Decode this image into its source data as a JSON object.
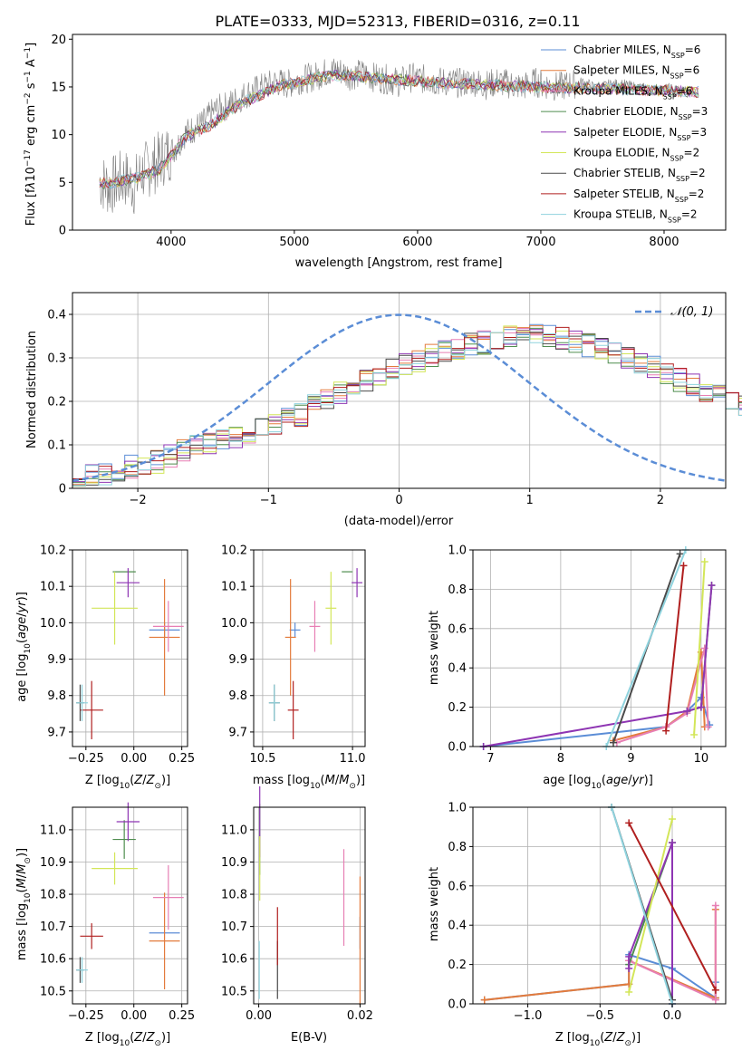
{
  "figure_title": "PLATE=0333, MJD=52313, FIBERID=0316, z=0.11",
  "chart_data": [
    {
      "id": "spectrum",
      "type": "line",
      "title": "PLATE=0333, MJD=52313, FIBERID=0316, z=0.11",
      "xlabel": "wavelength [Angstrom, rest frame]",
      "ylabel": "Flux [f_λ 10^-17 erg cm^-2 s^-1 A^-1]",
      "xlim": [
        3200,
        8500
      ],
      "ylim": [
        0,
        20.5
      ],
      "xticks": [
        4000,
        5000,
        6000,
        7000,
        8000
      ],
      "yticks": [
        0,
        5,
        10,
        15,
        20
      ],
      "grid": false,
      "legend_position": "top-right",
      "data_series": {
        "name": "data",
        "color": "#808080",
        "x": [
          3420,
          3500,
          3560,
          3620,
          3700,
          3760,
          3820,
          3880,
          3950,
          4000,
          4050,
          4100,
          4180,
          4260,
          4350,
          4450,
          4550,
          4650,
          4750,
          4850,
          4950,
          5050,
          5150,
          5250,
          5350,
          5450,
          5550,
          5650,
          5750,
          5850,
          5950,
          6050,
          6150,
          6250,
          6350,
          6450,
          6550,
          6650,
          6750,
          6850,
          6950,
          7050,
          7150,
          7250,
          7350,
          7450,
          7550,
          7650,
          7750,
          7850,
          7950,
          8050,
          8150,
          8250
        ],
        "y": [
          5.2,
          4.5,
          5.0,
          5.5,
          4.6,
          6.0,
          6.5,
          7.0,
          7.8,
          8.3,
          8.8,
          10.0,
          10.6,
          11.2,
          12.5,
          13.0,
          13.8,
          14.5,
          15.0,
          15.5,
          15.3,
          15.8,
          16.0,
          16.5,
          16.8,
          16.2,
          16.4,
          16.0,
          15.8,
          15.5,
          16.0,
          15.8,
          15.6,
          15.5,
          15.4,
          15.6,
          15.2,
          15.5,
          15.3,
          15.0,
          15.5,
          15.2,
          15.0,
          15.3,
          15.5,
          14.8,
          15.2,
          15.3,
          15.0,
          14.8,
          14.6,
          14.8,
          14.5,
          14.6
        ]
      },
      "models": [
        {
          "name": "Chabrier MILES, N_SSP=6",
          "color": "#5b8dd6"
        },
        {
          "name": "Salpeter MILES, N_SSP=6",
          "color": "#e37b3c"
        },
        {
          "name": "Kroupa MILES, N_SSP=6",
          "color": "#e77fb4"
        },
        {
          "name": "Chabrier ELODIE, N_SSP=3",
          "color": "#4f8d4f"
        },
        {
          "name": "Salpeter ELODIE, N_SSP=3",
          "color": "#8e35b3"
        },
        {
          "name": "Kroupa ELODIE, N_SSP=2",
          "color": "#d3e659"
        },
        {
          "name": "Chabrier STELIB, N_SSP=2",
          "color": "#4a4a4a"
        },
        {
          "name": "Salpeter STELIB, N_SSP=2",
          "color": "#b01f1f"
        },
        {
          "name": "Kroupa STELIB, N_SSP=2",
          "color": "#8fd3de"
        }
      ],
      "model_x": [
        3420,
        3500,
        3600,
        3700,
        3800,
        3900,
        4000,
        4100,
        4200,
        4300,
        4400,
        4500,
        4600,
        4700,
        4800,
        4900,
        5000,
        5200,
        5400,
        5600,
        5800,
        6000,
        6200,
        6400,
        6600,
        6800,
        7000,
        7200,
        7400,
        7600,
        7800,
        8000,
        8200,
        8280
      ],
      "model_y": [
        5.0,
        4.8,
        5.2,
        5.4,
        5.8,
        6.3,
        7.8,
        9.5,
        10.3,
        10.8,
        11.8,
        12.7,
        13.5,
        14.0,
        14.7,
        15.2,
        15.5,
        16.0,
        16.3,
        16.0,
        15.8,
        15.6,
        15.4,
        15.3,
        15.2,
        15.1,
        15.0,
        14.9,
        14.9,
        14.8,
        14.7,
        14.6,
        14.5,
        14.5
      ]
    },
    {
      "id": "residuals",
      "type": "step",
      "xlabel": "(data-model)/error",
      "ylabel": "Normed distribution",
      "xlim": [
        -2.5,
        2.5
      ],
      "ylim": [
        0,
        0.45
      ],
      "xticks": [
        -2,
        -1,
        0,
        1,
        2
      ],
      "yticks": [
        0.0,
        0.1,
        0.2,
        0.3,
        0.4
      ],
      "grid": true,
      "legend_position": "top-right",
      "reference_curve": {
        "name": "N(0,1)",
        "color": "#5b8dd6"
      },
      "bin_width": 0.1,
      "bin_start": -2.5,
      "base_histogram": [
        0.02,
        0.03,
        0.035,
        0.04,
        0.05,
        0.055,
        0.06,
        0.075,
        0.085,
        0.095,
        0.105,
        0.11,
        0.12,
        0.13,
        0.14,
        0.15,
        0.16,
        0.17,
        0.19,
        0.205,
        0.22,
        0.235,
        0.25,
        0.26,
        0.27,
        0.285,
        0.295,
        0.305,
        0.315,
        0.32,
        0.33,
        0.335,
        0.345,
        0.35,
        0.355,
        0.35,
        0.35,
        0.345,
        0.34,
        0.33,
        0.325,
        0.315,
        0.3,
        0.29,
        0.28,
        0.265,
        0.25,
        0.24,
        0.225,
        0.21,
        0.2,
        0.185,
        0.17,
        0.16,
        0.145,
        0.135,
        0.12,
        0.11,
        0.1,
        0.09,
        0.08,
        0.075,
        0.07,
        0.06,
        0.055,
        0.05,
        0.045,
        0.04,
        0.035,
        0.035,
        0.03,
        0.03
      ]
    },
    {
      "id": "age_vs_Z",
      "type": "errorbar",
      "xlabel": "Z [log10(Z/Z⊙)]",
      "ylabel": "age [log10(age/yr)]",
      "xlim": [
        -0.32,
        0.28
      ],
      "ylim": [
        9.66,
        10.2
      ],
      "xticks": [
        -0.25,
        0.0,
        0.25
      ],
      "yticks": [
        9.7,
        9.8,
        9.9,
        10.0,
        10.1,
        10.2
      ],
      "grid": true
    },
    {
      "id": "age_vs_mass",
      "type": "errorbar",
      "xlabel": "mass [log10(M/M⊙)]",
      "xlim": [
        10.45,
        11.07
      ],
      "ylim": [
        9.66,
        10.2
      ],
      "xticks": [
        10.5,
        11.0
      ],
      "yticks": [
        9.7,
        9.8,
        9.9,
        10.0,
        10.1,
        10.2
      ],
      "grid": true
    },
    {
      "id": "weight_vs_age",
      "type": "line",
      "xlabel": "age [log10(age/yr)]",
      "ylabel": "mass weight",
      "xlim": [
        6.75,
        10.35
      ],
      "ylim": [
        0,
        1.0
      ],
      "xticks": [
        7,
        8,
        9,
        10
      ],
      "yticks": [
        0.0,
        0.2,
        0.4,
        0.6,
        0.8,
        1.0
      ],
      "grid": true,
      "series": [
        {
          "color": "#5b8dd6",
          "x": [
            6.9,
            9.5,
            9.8,
            10.0,
            10.12
          ],
          "y": [
            0.0,
            0.1,
            0.18,
            0.25,
            0.11
          ]
        },
        {
          "color": "#e37b3c",
          "x": [
            8.75,
            9.5,
            9.8,
            10.0,
            10.05
          ],
          "y": [
            0.03,
            0.1,
            0.18,
            0.48,
            0.1
          ]
        },
        {
          "color": "#e77fb4",
          "x": [
            8.8,
            9.5,
            9.8,
            10.05,
            10.1
          ],
          "y": [
            0.02,
            0.1,
            0.17,
            0.5,
            0.1
          ]
        },
        {
          "color": "#4f8d4f",
          "x": [
            9.8,
            10.0,
            10.15
          ],
          "y": [
            0.18,
            0.2,
            0.82
          ]
        },
        {
          "color": "#8e35b3",
          "x": [
            6.9,
            9.8,
            10.0,
            10.15
          ],
          "y": [
            0.0,
            0.18,
            0.2,
            0.82
          ]
        },
        {
          "color": "#d3e659",
          "x": [
            9.9,
            10.05
          ],
          "y": [
            0.06,
            0.94
          ]
        },
        {
          "color": "#4a4a4a",
          "x": [
            8.75,
            9.7
          ],
          "y": [
            0.02,
            0.98
          ]
        },
        {
          "color": "#b01f1f",
          "x": [
            9.5,
            9.75
          ],
          "y": [
            0.08,
            0.92
          ]
        },
        {
          "color": "#8fd3de",
          "x": [
            8.65,
            9.78
          ],
          "y": [
            0.0,
            1.0
          ]
        }
      ]
    },
    {
      "id": "mass_vs_Z",
      "type": "errorbar",
      "xlabel": "Z [log10(Z/Z⊙)]",
      "ylabel": "mass [log10(M/M⊙)]",
      "xlim": [
        -0.32,
        0.28
      ],
      "ylim": [
        10.46,
        11.07
      ],
      "xticks": [
        -0.25,
        0.0,
        0.25
      ],
      "yticks": [
        10.5,
        10.6,
        10.7,
        10.8,
        10.9,
        11.0
      ],
      "grid": true
    },
    {
      "id": "mass_vs_EBV",
      "type": "errorbar",
      "xlabel": "E(B-V)",
      "xlim": [
        -0.001,
        0.021
      ],
      "ylim": [
        10.46,
        11.07
      ],
      "xticks": [
        0.0,
        0.02
      ],
      "yticks": [
        10.5,
        10.6,
        10.7,
        10.8,
        10.9,
        11.0
      ],
      "grid": true
    },
    {
      "id": "weight_vs_Z",
      "type": "line",
      "xlabel": "Z [log10(Z/Z⊙)]",
      "ylabel": "mass weight",
      "xlim": [
        -1.38,
        0.37
      ],
      "ylim": [
        0,
        1.0
      ],
      "xticks": [
        -1.0,
        -0.5,
        0.0
      ],
      "yticks": [
        0.0,
        0.2,
        0.4,
        0.6,
        0.8,
        1.0
      ],
      "grid": true,
      "series": [
        {
          "color": "#5b8dd6",
          "x": [
            -1.3,
            -0.3,
            -0.3,
            0.0,
            0.3,
            0.3
          ],
          "y": [
            0.02,
            0.1,
            0.25,
            0.18,
            0.03,
            0.11
          ]
        },
        {
          "color": "#e37b3c",
          "x": [
            -1.3,
            -0.3,
            -0.3,
            0.3,
            0.3
          ],
          "y": [
            0.02,
            0.1,
            0.22,
            0.03,
            0.48
          ]
        },
        {
          "color": "#e77fb4",
          "x": [
            -0.3,
            0.3,
            0.3
          ],
          "y": [
            0.22,
            0.02,
            0.5
          ]
        },
        {
          "color": "#4f8d4f",
          "x": [
            -0.3,
            0.0,
            0.0
          ],
          "y": [
            0.2,
            0.82,
            0.0
          ]
        },
        {
          "color": "#8e35b3",
          "x": [
            -0.3,
            -0.3,
            0.0,
            0.0
          ],
          "y": [
            0.18,
            0.24,
            0.82,
            0.0
          ]
        },
        {
          "color": "#d3e659",
          "x": [
            -0.3,
            0.0
          ],
          "y": [
            0.06,
            0.94
          ]
        },
        {
          "color": "#4a4a4a",
          "x": [
            -0.42,
            0.0
          ],
          "y": [
            1.0,
            0.02
          ]
        },
        {
          "color": "#b01f1f",
          "x": [
            -0.3,
            0.3
          ],
          "y": [
            0.92,
            0.07
          ]
        },
        {
          "color": "#8fd3de",
          "x": [
            -0.42,
            0.0
          ],
          "y": [
            1.0,
            0.0
          ]
        }
      ]
    }
  ],
  "sp_points": {
    "colors": [
      "#5b8dd6",
      "#e37b3c",
      "#e77fb4",
      "#4f8d4f",
      "#8e35b3",
      "#d3e659",
      "#4a4a4a",
      "#b01f1f",
      "#8fd3de"
    ],
    "Z": [
      0.16,
      0.16,
      0.18,
      -0.05,
      -0.03,
      -0.1,
      -0.28,
      -0.22,
      -0.27
    ],
    "Z_err": [
      0.08,
      0.08,
      0.08,
      0.06,
      0.06,
      0.12,
      0.02,
      0.06,
      0.03
    ],
    "age": [
      9.98,
      9.96,
      9.99,
      10.14,
      10.11,
      10.04,
      9.78,
      9.76,
      9.78
    ],
    "age_err": [
      0.02,
      0.16,
      0.07,
      0.0,
      0.04,
      0.1,
      0.05,
      0.08,
      0.05
    ],
    "mass": [
      10.68,
      10.655,
      10.79,
      10.97,
      11.025,
      10.88,
      10.565,
      10.67,
      10.565
    ],
    "mass_err": [
      0.0,
      0.15,
      0.1,
      0.06,
      0.06,
      0.05,
      0.04,
      0.04,
      0.04
    ],
    "ebv": [
      0.02,
      0.02,
      0.0168,
      0.0002,
      0.0002,
      0.0002,
      0.0037,
      0.0037,
      0.0001
    ]
  }
}
